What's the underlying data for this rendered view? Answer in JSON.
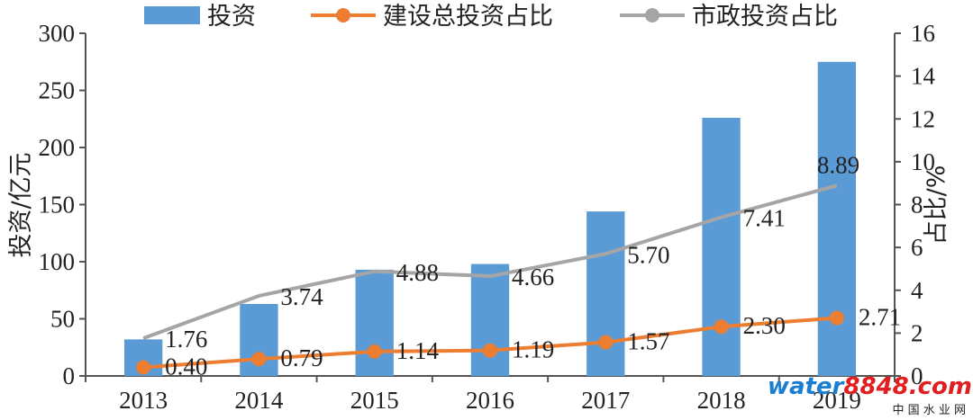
{
  "chart_data": {
    "type": "bar",
    "categories": [
      "2013",
      "2014",
      "2015",
      "2016",
      "2017",
      "2018",
      "2019"
    ],
    "series": [
      {
        "name": "投资",
        "type": "bar",
        "axis": "left",
        "color": "#5B9BD5",
        "values": [
          32,
          63,
          93,
          98,
          144,
          226,
          275
        ]
      },
      {
        "name": "建设总投资占比",
        "type": "line",
        "axis": "right",
        "color": "#ED7D31",
        "values": [
          0.4,
          0.79,
          1.14,
          1.19,
          1.57,
          2.3,
          2.71
        ],
        "labels": [
          "0.40",
          "0.79",
          "1.14",
          "1.19",
          "1.57",
          "2.30",
          "2.71"
        ]
      },
      {
        "name": "市政投资占比",
        "type": "line",
        "axis": "right",
        "color": "#A5A5A5",
        "values": [
          1.76,
          3.74,
          4.88,
          4.66,
          5.7,
          7.41,
          8.89
        ],
        "labels": [
          "1.76",
          "3.74",
          "4.88",
          "4.66",
          "5.70",
          "7.41",
          "8.89"
        ]
      }
    ],
    "ylabel": "投资/亿元",
    "y2label": "占比/%",
    "ylim": [
      0,
      300
    ],
    "y2lim": [
      0,
      16
    ],
    "yticks": [
      "0",
      "50",
      "100",
      "150",
      "200",
      "250",
      "300"
    ],
    "y2ticks": [
      "0",
      "2",
      "4",
      "6",
      "8",
      "10",
      "12",
      "14",
      "16"
    ],
    "grid": false,
    "legend_position": "top"
  },
  "watermark": {
    "logo_water": "water",
    "logo_num": "8848",
    "logo_com": ".com",
    "subtitle": "中 国 水 业 网",
    "colors": {
      "water": "#1a7fd0",
      "num": "#e02020",
      "sub": "#e02020"
    }
  }
}
